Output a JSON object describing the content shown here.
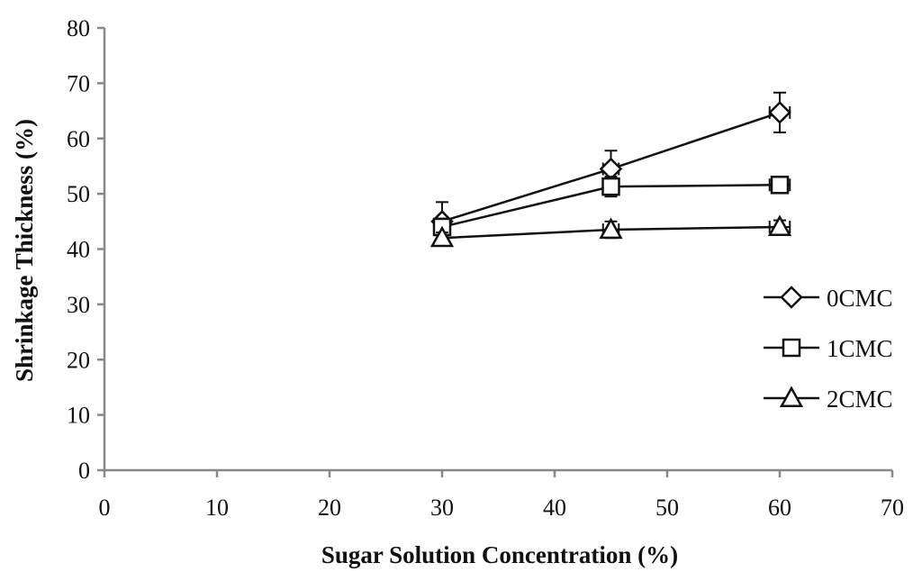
{
  "chart_data": {
    "type": "line",
    "title": "",
    "xlabel": "Sugar Solution Concentration (%)",
    "ylabel": "Shrinkage Thickness (%)",
    "xlim": [
      0,
      70
    ],
    "ylim": [
      0,
      80
    ],
    "x_ticks": [
      "0",
      "10",
      "20",
      "30",
      "40",
      "50",
      "60",
      "70"
    ],
    "y_ticks": [
      "0",
      "10",
      "20",
      "30",
      "40",
      "50",
      "60",
      "70",
      "80"
    ],
    "grid": false,
    "legend_position": "right",
    "series": [
      {
        "name": "0CMC",
        "marker": "diamond",
        "x": [
          30,
          45,
          60
        ],
        "values": [
          45.0,
          54.5,
          64.7
        ],
        "y_err": [
          3.5,
          3.3,
          3.6
        ],
        "x_err": [
          0,
          0.7,
          0.9
        ]
      },
      {
        "name": "1CMC",
        "marker": "square",
        "x": [
          30,
          45,
          60
        ],
        "values": [
          44.0,
          51.3,
          51.6
        ],
        "y_err": [
          1.5,
          1.8,
          1.5
        ],
        "x_err": [
          0,
          0.7,
          0.9
        ]
      },
      {
        "name": "2CMC",
        "marker": "triangle",
        "x": [
          30,
          45,
          60
        ],
        "values": [
          42.0,
          43.5,
          44.0
        ],
        "y_err": [
          1.0,
          1.5,
          1.2
        ],
        "x_err": [
          0,
          0.7,
          0.9
        ]
      }
    ],
    "colors": {
      "line": "#111111",
      "axis": "#888888",
      "marker_fill": "#ffffff"
    }
  }
}
